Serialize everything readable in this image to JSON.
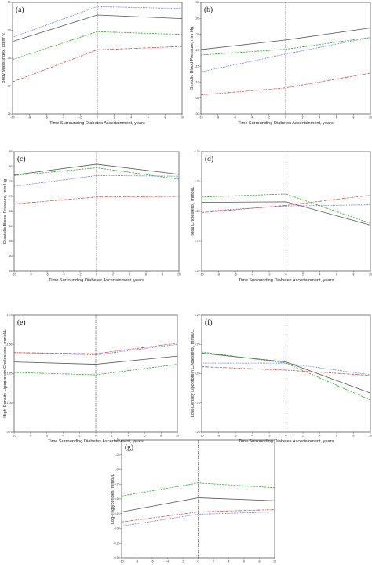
{
  "chart_data": [
    {
      "type": "line",
      "panel_label": "(a)",
      "xlabel": "Time Surrounding Diabetes Ascertainment, years",
      "ylabel": "Body Mass Index, kg/m^2",
      "xlim": [
        -10,
        10
      ],
      "ylim": [
        26,
        30
      ],
      "xticks": [
        "-10",
        "-8",
        "-6",
        "-4",
        "-2",
        "0",
        "2",
        "4",
        "6",
        "8",
        "10"
      ],
      "yticks": [
        "26",
        "27",
        "28",
        "29",
        "30"
      ],
      "series": [
        {
          "color": "#555555",
          "dash": "",
          "x": [
            -10,
            0,
            10
          ],
          "y": [
            28.6,
            29.55,
            29.42
          ]
        },
        {
          "color": "#5566dd",
          "dash": "1 0.9",
          "x": [
            -10,
            0,
            10
          ],
          "y": [
            28.75,
            29.85,
            29.78
          ]
        },
        {
          "color": "#33aa33",
          "dash": "2.4 1.2",
          "x": [
            -10,
            0,
            10
          ],
          "y": [
            27.95,
            28.95,
            28.85
          ]
        },
        {
          "color": "#dd4444",
          "dash": "3 1 0.8 1",
          "x": [
            -10,
            0,
            10
          ],
          "y": [
            27.15,
            28.3,
            28.42
          ]
        }
      ]
    },
    {
      "type": "line",
      "panel_label": "(b)",
      "xlabel": "Time Surrounding Diabetes Ascertainment, years",
      "ylabel": "Systolic Blood Pressure, mm Hg",
      "xlim": [
        -10,
        10
      ],
      "ylim": [
        100,
        135
      ],
      "xticks": [
        "-10",
        "-8",
        "-6",
        "-4",
        "-2",
        "0",
        "2",
        "4",
        "6",
        "8",
        "10"
      ],
      "yticks": [
        "100",
        "105",
        "110",
        "115",
        "120",
        "125",
        "130",
        "135"
      ],
      "series": [
        {
          "color": "#555555",
          "dash": "",
          "x": [
            -10,
            0,
            10
          ],
          "y": [
            120.2,
            123.2,
            127.0
          ]
        },
        {
          "color": "#5566dd",
          "dash": "1 0.9",
          "x": [
            -10,
            0,
            10
          ],
          "y": [
            113.2,
            118.8,
            124.0
          ]
        },
        {
          "color": "#33aa33",
          "dash": "2.4 1.2",
          "x": [
            -10,
            0,
            10
          ],
          "y": [
            118.5,
            120.3,
            124.0
          ]
        },
        {
          "color": "#dd4444",
          "dash": "3 1 0.8 1",
          "x": [
            -10,
            0,
            10
          ],
          "y": [
            106.0,
            108.2,
            112.8
          ]
        }
      ]
    },
    {
      "type": "line",
      "panel_label": "(c)",
      "xlabel": "Time Surrounding Diabetes Ascertainment, years",
      "ylabel": "Diastolic Blood Pressure, mm Hg",
      "xlim": [
        -10,
        10
      ],
      "ylim": [
        45,
        85
      ],
      "xticks": [
        "-10",
        "-8",
        "-6",
        "-4",
        "-2",
        "0",
        "2",
        "4",
        "6",
        "8",
        "10"
      ],
      "yticks": [
        "45",
        "50",
        "55",
        "60",
        "65",
        "70",
        "75",
        "80",
        "85"
      ],
      "series": [
        {
          "color": "#555555",
          "dash": "",
          "x": [
            -10,
            0,
            10
          ],
          "y": [
            77.2,
            80.8,
            77.4
          ]
        },
        {
          "color": "#5566dd",
          "dash": "1 0.9",
          "x": [
            -10,
            0,
            10
          ],
          "y": [
            73.4,
            77.0,
            76.8
          ]
        },
        {
          "color": "#33aa33",
          "dash": "2.4 1.2",
          "x": [
            -10,
            0,
            10
          ],
          "y": [
            77.0,
            79.6,
            75.8
          ]
        },
        {
          "color": "#dd4444",
          "dash": "3 1 0.8 1",
          "x": [
            -10,
            0,
            10
          ],
          "y": [
            67.5,
            69.8,
            70.0
          ]
        }
      ]
    },
    {
      "type": "line",
      "panel_label": "(d)",
      "xlabel": "Time Surrounding Diabetes Ascertainment, years",
      "ylabel": "Total Cholesterol, mmol/L",
      "xlim": [
        -10,
        10
      ],
      "ylim": [
        4.25,
        6.25
      ],
      "xticks": [
        "-10",
        "-8",
        "-6",
        "-4",
        "-2",
        "0",
        "2",
        "4",
        "6",
        "8",
        "10"
      ],
      "yticks": [
        "4.25",
        "4.75",
        "5.25",
        "5.75",
        "6.25"
      ],
      "series": [
        {
          "color": "#555555",
          "dash": "",
          "x": [
            -10,
            0,
            10
          ],
          "y": [
            5.4,
            5.41,
            5.02
          ]
        },
        {
          "color": "#5566dd",
          "dash": "1 0.9",
          "x": [
            -10,
            0,
            10
          ],
          "y": [
            5.25,
            5.34,
            5.36
          ]
        },
        {
          "color": "#33aa33",
          "dash": "2.4 1.2",
          "x": [
            -10,
            0,
            10
          ],
          "y": [
            5.49,
            5.54,
            5.05
          ]
        },
        {
          "color": "#dd4444",
          "dash": "3 1 0.8 1",
          "x": [
            -10,
            0,
            10
          ],
          "y": [
            5.23,
            5.35,
            5.52
          ]
        }
      ]
    },
    {
      "type": "line",
      "panel_label": "(e)",
      "xlabel": "Time Surrounding Diabetes Ascertainment, years",
      "ylabel": "High-Density Lipoprotein Cholesterol, mmol/L",
      "xlim": [
        -10,
        10
      ],
      "ylim": [
        0.75,
        1.75
      ],
      "xticks": [
        "-10",
        "-8",
        "-6",
        "-4",
        "-2",
        "0",
        "2",
        "4",
        "6",
        "8",
        "10"
      ],
      "yticks": [
        "0.75",
        "1.00",
        "1.25",
        "1.50",
        "1.75"
      ],
      "series": [
        {
          "color": "#555555",
          "dash": "",
          "x": [
            -10,
            0,
            10
          ],
          "y": [
            1.35,
            1.33,
            1.4
          ]
        },
        {
          "color": "#5566dd",
          "dash": "1 0.9",
          "x": [
            -10,
            0,
            10
          ],
          "y": [
            1.43,
            1.41,
            1.5
          ]
        },
        {
          "color": "#33aa33",
          "dash": "2.4 1.2",
          "x": [
            -10,
            0,
            10
          ],
          "y": [
            1.26,
            1.24,
            1.33
          ]
        },
        {
          "color": "#dd4444",
          "dash": "3 1 0.8 1",
          "x": [
            -10,
            0,
            10
          ],
          "y": [
            1.43,
            1.42,
            1.51
          ]
        }
      ]
    },
    {
      "type": "line",
      "panel_label": "(f)",
      "xlabel": "Time Surrounding Diabetes Ascertainment, years",
      "ylabel": "Low-Density Lipoprotein Cholesterol, mmol/L",
      "xlim": [
        -10,
        10
      ],
      "ylim": [
        2.25,
        4.25
      ],
      "xticks": [
        "-10",
        "-8",
        "-6",
        "-4",
        "-2",
        "0",
        "2",
        "4",
        "6",
        "8",
        "10"
      ],
      "yticks": [
        "2.25",
        "2.75",
        "3.25",
        "3.75",
        "4.25"
      ],
      "series": [
        {
          "color": "#555555",
          "dash": "",
          "x": [
            -10,
            0,
            10
          ],
          "y": [
            3.6,
            3.45,
            2.92
          ]
        },
        {
          "color": "#5566dd",
          "dash": "1 0.9",
          "x": [
            -10,
            0,
            10
          ],
          "y": [
            3.43,
            3.43,
            3.23
          ]
        },
        {
          "color": "#33aa33",
          "dash": "2.4 1.2",
          "x": [
            -10,
            0,
            10
          ],
          "y": [
            3.62,
            3.43,
            2.8
          ]
        },
        {
          "color": "#dd4444",
          "dash": "3 1 0.8 1",
          "x": [
            -10,
            0,
            10
          ],
          "y": [
            3.37,
            3.31,
            3.22
          ]
        }
      ]
    },
    {
      "type": "line",
      "panel_label": "(g)",
      "xlabel": "Time Surrounding Diabetes Ascertainment, years",
      "ylabel": "Log-Triglycerides, mmol/L",
      "xlim": [
        -10,
        10
      ],
      "ylim": [
        -0.5,
        1.5
      ],
      "xticks": [
        "-10",
        "-8",
        "-6",
        "-4",
        "-2",
        "0",
        "2",
        "4",
        "6",
        "8",
        "10"
      ],
      "yticks": [
        "-0.50",
        "-0.25",
        "0.00",
        "0.25",
        "0.50",
        "0.75",
        "1.00",
        "1.25",
        "1.50"
      ],
      "series": [
        {
          "color": "#555555",
          "dash": "",
          "x": [
            -10,
            0,
            10
          ],
          "y": [
            0.28,
            0.52,
            0.47
          ]
        },
        {
          "color": "#5566dd",
          "dash": "1 0.9",
          "x": [
            -10,
            0,
            10
          ],
          "y": [
            0.04,
            0.24,
            0.28
          ]
        },
        {
          "color": "#33aa33",
          "dash": "2.4 1.2",
          "x": [
            -10,
            0,
            10
          ],
          "y": [
            0.55,
            0.77,
            0.69
          ]
        },
        {
          "color": "#dd4444",
          "dash": "3 1 0.8 1",
          "x": [
            -10,
            0,
            10
          ],
          "y": [
            0.11,
            0.28,
            0.32
          ]
        }
      ]
    }
  ]
}
